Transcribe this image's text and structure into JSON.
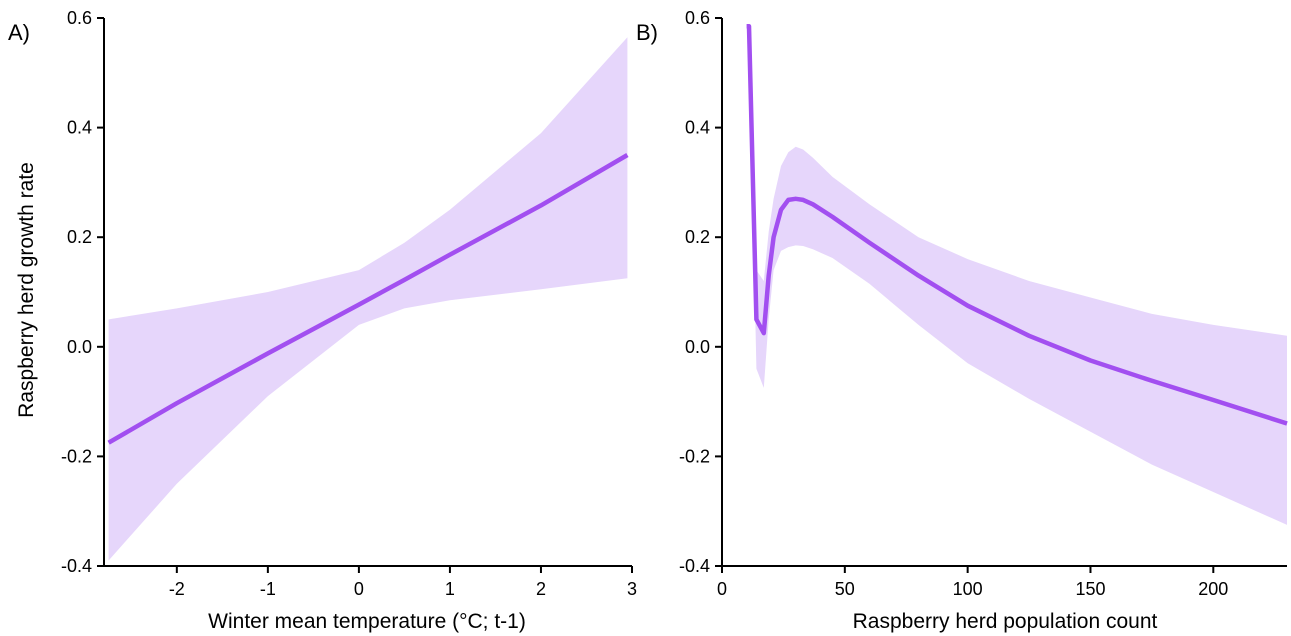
{
  "chart_data": [
    {
      "type": "line",
      "panel_label": "A)",
      "xlabel": "Winter mean temperature (°C; t-1)",
      "ylabel": "Raspberry herd growth rate",
      "xlim": [
        -2.8,
        3.0
      ],
      "ylim": [
        -0.4,
        0.6
      ],
      "xticks": [
        -2,
        -1,
        0,
        1,
        2,
        3
      ],
      "yticks": [
        -0.4,
        -0.2,
        0.0,
        0.2,
        0.4,
        0.6
      ],
      "xtick_labels": [
        "-2",
        "-1",
        "0",
        "1",
        "2",
        "3"
      ],
      "ytick_labels": [
        "-0.4",
        "-0.2",
        "0.0",
        "0.2",
        "0.4",
        "0.6"
      ],
      "grid": false,
      "colors": {
        "line": "#a24ff0",
        "band": "#e6d6fb"
      },
      "series": [
        {
          "x": [
            -2.75,
            -2,
            -1,
            0,
            0.5,
            1,
            2,
            2.95
          ],
          "y": [
            -0.175,
            -0.103,
            -0.012,
            0.077,
            0.122,
            0.168,
            0.258,
            0.35
          ],
          "lower": [
            -0.39,
            -0.25,
            -0.09,
            0.04,
            0.07,
            0.085,
            0.105,
            0.125
          ],
          "upper": [
            0.05,
            0.07,
            0.1,
            0.14,
            0.19,
            0.25,
            0.39,
            0.565
          ]
        }
      ]
    },
    {
      "type": "line",
      "panel_label": "B)",
      "xlabel": "Raspberry herd population count",
      "ylabel": "",
      "xlim": [
        0,
        230
      ],
      "ylim": [
        -0.4,
        0.6
      ],
      "xticks": [
        0,
        50,
        100,
        150,
        200
      ],
      "yticks": [
        -0.4,
        -0.2,
        0.0,
        0.2,
        0.4,
        0.6
      ],
      "xtick_labels": [
        "0",
        "50",
        "100",
        "150",
        "200"
      ],
      "ytick_labels": [
        "-0.4",
        "-0.2",
        "0.0",
        "0.2",
        "0.4",
        "0.6"
      ],
      "grid": false,
      "colors": {
        "line": "#a24ff0",
        "band": "#e6d6fb"
      },
      "series": [
        {
          "x": [
            10,
            11,
            14,
            17,
            19,
            21,
            24,
            27,
            30,
            33,
            37,
            45,
            60,
            80,
            100,
            125,
            150,
            175,
            200,
            230
          ],
          "y": [
            0.585,
            0.585,
            0.05,
            0.025,
            0.13,
            0.2,
            0.25,
            0.268,
            0.27,
            0.268,
            0.26,
            0.237,
            0.19,
            0.13,
            0.075,
            0.02,
            -0.025,
            -0.062,
            -0.097,
            -0.14
          ],
          "lower": [
            0.585,
            0.585,
            -0.04,
            -0.075,
            0.05,
            0.14,
            0.175,
            0.182,
            0.185,
            0.184,
            0.178,
            0.162,
            0.115,
            0.04,
            -0.03,
            -0.095,
            -0.155,
            -0.215,
            -0.265,
            -0.325
          ],
          "upper": [
            0.585,
            0.585,
            0.14,
            0.12,
            0.21,
            0.27,
            0.33,
            0.355,
            0.365,
            0.36,
            0.345,
            0.31,
            0.26,
            0.2,
            0.16,
            0.12,
            0.09,
            0.06,
            0.04,
            0.02
          ]
        }
      ]
    }
  ]
}
